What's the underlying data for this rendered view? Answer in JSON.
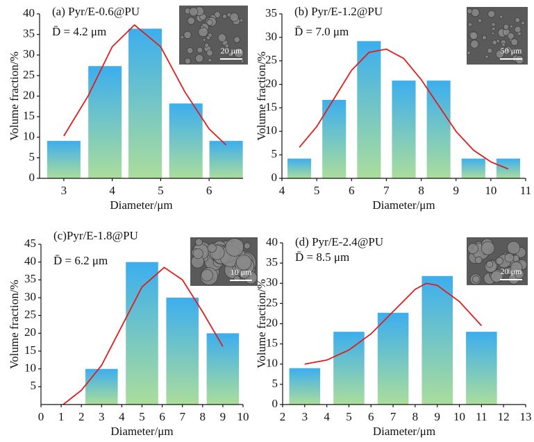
{
  "chart_data": [
    {
      "type": "bar",
      "title": "(a) Pyr/E-0.6@PU",
      "annotation": "D̄ = 4.2 μm",
      "inset_scale": "20 μm",
      "xlabel": "Diameter/μm",
      "ylabel": "Volume fraction/%",
      "x": [
        3.0,
        3.85,
        4.68,
        5.52,
        6.35
      ],
      "values": [
        9.1,
        27.3,
        36.4,
        18.2,
        9.1
      ],
      "fit": {
        "x": [
          3.0,
          3.5,
          4.0,
          4.46,
          5.0,
          5.5,
          6.0,
          6.35
        ],
        "values": [
          10.3,
          20,
          32,
          37.3,
          32,
          21,
          12,
          8.1
        ]
      },
      "xlim": [
        2.5,
        6.7
      ],
      "ylim": [
        0,
        40
      ],
      "xticks": [
        3,
        4,
        5,
        6
      ],
      "yticks": [
        0,
        5,
        10,
        15,
        20,
        25,
        30,
        35,
        40
      ],
      "bar_colors": [
        "#3caeee",
        "#abdd9c"
      ],
      "fit_color": "#e31b1b"
    },
    {
      "type": "bar",
      "title": "(b) Pyr/E-1.2@PU",
      "annotation": "D̄ = 7.0 μm",
      "inset_scale": "50 μm",
      "xlabel": "Diameter/μm",
      "ylabel": "Volume fraction/%",
      "x": [
        4.5,
        5.5,
        6.5,
        7.5,
        8.5,
        9.5,
        10.5
      ],
      "values": [
        4.2,
        16.7,
        29.2,
        20.8,
        20.8,
        4.2,
        4.2
      ],
      "fit": {
        "x": [
          4.5,
          5,
          5.5,
          6,
          6.5,
          7,
          7.5,
          8,
          8.5,
          9,
          9.5,
          10,
          10.5
        ],
        "values": [
          6.6,
          11,
          17,
          23,
          26.8,
          27.5,
          25.5,
          21,
          15.5,
          10,
          6,
          3.5,
          2
        ]
      },
      "xlim": [
        4,
        11
      ],
      "ylim": [
        0,
        35
      ],
      "xticks": [
        4,
        5,
        6,
        7,
        8,
        9,
        10,
        11
      ],
      "yticks": [
        0,
        5,
        10,
        15,
        20,
        25,
        30,
        35
      ],
      "bar_colors": [
        "#3caeee",
        "#abdd9c"
      ],
      "fit_color": "#e31b1b"
    },
    {
      "type": "bar",
      "title": "(c)Pyr/E-1.8@PU",
      "annotation": "D̄ = 6.2 μm",
      "inset_scale": "10 μm",
      "xlabel": "Diameter/μm",
      "ylabel": "Volume fraction/%",
      "x": [
        3,
        5,
        7,
        9
      ],
      "values": [
        10,
        40,
        30,
        20
      ],
      "fit": {
        "x": [
          1.1,
          2,
          3,
          4,
          5,
          6.1,
          7,
          8,
          9
        ],
        "values": [
          0,
          4,
          11,
          22,
          33,
          38.5,
          35,
          26,
          16.3
        ]
      },
      "xlim": [
        0,
        10
      ],
      "ylim": [
        0,
        45
      ],
      "xticks": [
        0,
        1,
        2,
        3,
        4,
        5,
        6,
        7,
        8,
        9,
        10
      ],
      "yticks": [
        5,
        10,
        15,
        20,
        25,
        30,
        35,
        40,
        45
      ],
      "bar_colors": [
        "#3caeee",
        "#abdd9c"
      ],
      "fit_color": "#e31b1b"
    },
    {
      "type": "bar",
      "title": "(d) Pyr/E-2.4@PU",
      "annotation": "D̄ = 8.5 μm",
      "inset_scale": "20 μm",
      "xlabel": "Diameter/μm",
      "ylabel": "Volume fraction/%",
      "x": [
        3,
        5,
        7,
        9,
        11
      ],
      "values": [
        9,
        18,
        22.7,
        31.8,
        18
      ],
      "fit": {
        "x": [
          3,
          4,
          5,
          6,
          7,
          8,
          8.5,
          9,
          10,
          11
        ],
        "values": [
          10,
          11,
          13.5,
          17.5,
          23,
          28.5,
          30,
          29.5,
          25.5,
          19.5
        ]
      },
      "xlim": [
        2,
        13
      ],
      "ylim": [
        0,
        40
      ],
      "xticks": [
        2,
        3,
        4,
        5,
        6,
        7,
        8,
        9,
        10,
        11,
        12,
        13
      ],
      "yticks": [
        0,
        5,
        10,
        15,
        20,
        25,
        30,
        35,
        40
      ],
      "bar_colors": [
        "#3caeee",
        "#abdd9c"
      ],
      "fit_color": "#e31b1b"
    }
  ]
}
